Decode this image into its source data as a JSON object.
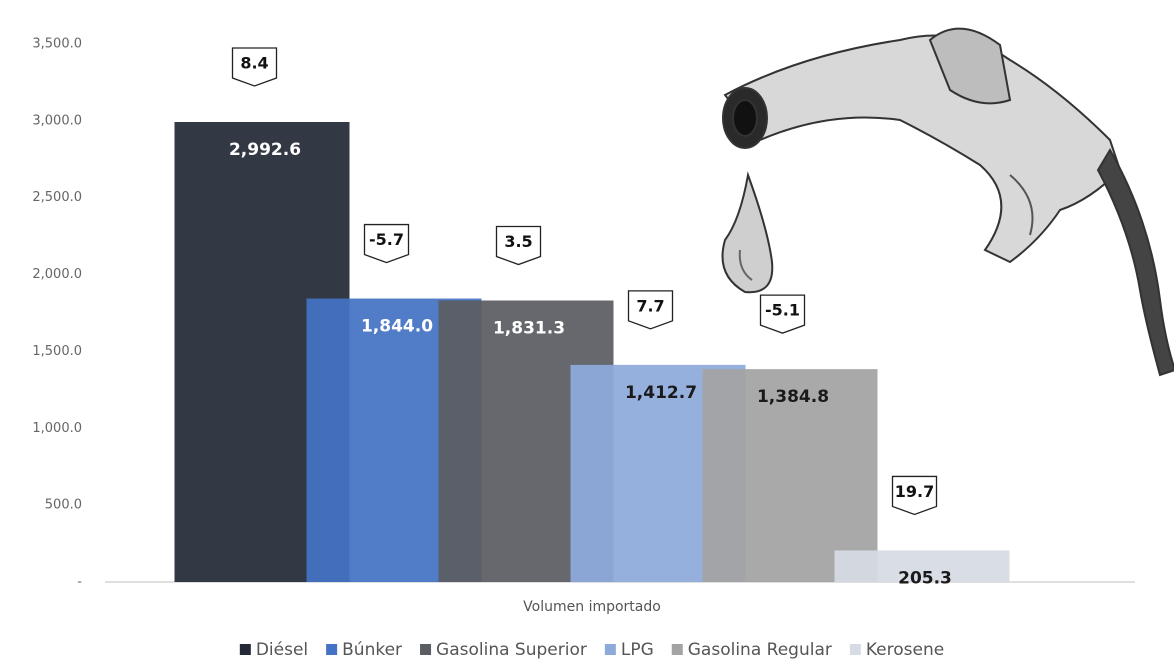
{
  "chart_data": {
    "type": "bar",
    "x_label": "Volumen importado",
    "categories": [
      "Volumen importado"
    ],
    "ylim": [
      0,
      3500
    ],
    "yticks": [
      {
        "value": 0,
        "label": "-"
      },
      {
        "value": 500,
        "label": "500.0"
      },
      {
        "value": 1000,
        "label": "1,000.0"
      },
      {
        "value": 1500,
        "label": "1,500.0"
      },
      {
        "value": 2000,
        "label": "2,000.0"
      },
      {
        "value": 2500,
        "label": "2,500.0"
      },
      {
        "value": 3000,
        "label": "3,000.0"
      },
      {
        "value": 3500,
        "label": "3,500.0"
      }
    ],
    "series": [
      {
        "name": "Diésel",
        "color": "#232a36",
        "label_color": "#ffffff",
        "values": [
          2992.6
        ],
        "value_labels": [
          "2,992.6"
        ],
        "change": [
          8.4
        ]
      },
      {
        "name": "Búnker",
        "color": "#4472c4",
        "label_color": "#ffffff",
        "values": [
          1844.0
        ],
        "value_labels": [
          "1,844.0"
        ],
        "change": [
          -5.7
        ]
      },
      {
        "name": "Gasolina Superior",
        "color": "#5a5d62",
        "label_color": "#ffffff",
        "values": [
          1831.3
        ],
        "value_labels": [
          "1,831.3"
        ],
        "change": [
          3.5
        ]
      },
      {
        "name": "LPG",
        "color": "#8eaadb",
        "label_color": "#1a1a1a",
        "values": [
          1412.7
        ],
        "value_labels": [
          "1,412.7"
        ],
        "change": [
          7.7
        ]
      },
      {
        "name": "Gasolina Regular",
        "color": "#a3a3a3",
        "label_color": "#1a1a1a",
        "values": [
          1384.8
        ],
        "value_labels": [
          "1,384.8"
        ],
        "change": [
          -5.1
        ]
      },
      {
        "name": "Kerosene",
        "color": "#d6dce4",
        "label_color": "#1a1a1a",
        "values": [
          205.3
        ],
        "value_labels": [
          "205.3"
        ],
        "change": [
          19.7
        ]
      }
    ]
  }
}
